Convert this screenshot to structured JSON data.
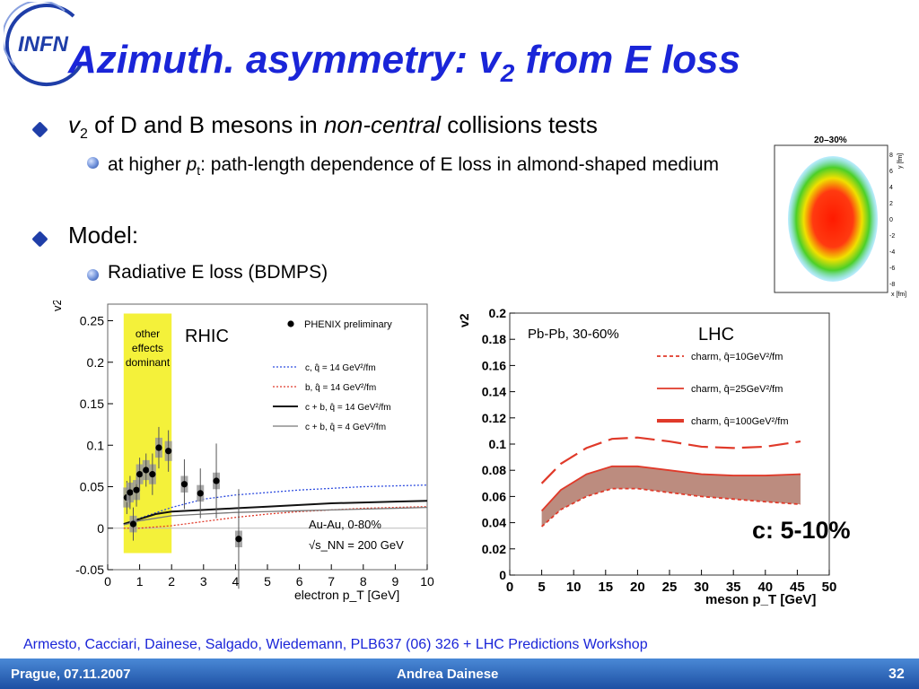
{
  "slide": {
    "logo_text": "INFN",
    "title_main": "Azimuth. asymmetry: v",
    "title_sub": "2",
    "title_end": " from E loss",
    "bullets": {
      "b1_v": "v",
      "b1_sub": "2",
      "b1_pre": " of D and B mesons in ",
      "b1_italic": "non-central",
      "b1_post": " collisions tests",
      "b1a_pre": "at higher ",
      "b1a_p": "p",
      "b1a_t": "t",
      "b1a_post": ": path-length dependence of E loss in almond-shaped medium",
      "b2": "Model:",
      "b2a": "Radiative E loss (BDMPS)"
    },
    "c_note": "c: 5-10%",
    "reference": "Armesto, Cacciari, Dainese, Salgado, Wiedemann, PLB637 (06) 326 + LHC Predictions Workshop",
    "footer": {
      "left": "Prague, 07.11.2007",
      "center": "Andrea Dainese",
      "page": "32"
    }
  },
  "chart_data": [
    {
      "type": "scatter",
      "title": "RHIC",
      "ylabel": "v2",
      "xlabel": "electron p_T [GeV]",
      "xlim": [
        0,
        10
      ],
      "ylim": [
        -0.05,
        0.27
      ],
      "x_ticks": [
        0,
        1,
        2,
        3,
        4,
        5,
        6,
        7,
        8,
        9,
        10
      ],
      "y_ticks": [
        -0.05,
        0,
        0.05,
        0.1,
        0.15,
        0.2,
        0.25
      ],
      "y_tick_labels": [
        "-0.05",
        "0",
        "0.05",
        "0.1",
        "0.15",
        "0.2",
        "0.25"
      ],
      "shaded_band": {
        "x_range": [
          0.5,
          2.0
        ],
        "color": "#f4f13a",
        "label_lines": [
          "other",
          "effects",
          "dominant"
        ]
      },
      "system_label": "Au-Au, 0-80%",
      "energy_label": "√s_NN = 200 GeV",
      "legend": {
        "points": "PHENIX preliminary",
        "lines": [
          {
            "label": "c, q̂ = 14 GeV²/fm",
            "color": "#2f4de0",
            "style": "dotted"
          },
          {
            "label": "b, q̂ = 14 GeV²/fm",
            "color": "#e03a2a",
            "style": "dotted"
          },
          {
            "label": "c + b, q̂ = 14 GeV²/fm",
            "color": "#111111",
            "style": "solid"
          },
          {
            "label": "c + b, q̂ = 4 GeV²/fm",
            "color": "#777777",
            "style": "solid"
          }
        ]
      },
      "points": [
        {
          "x": 0.6,
          "y": 0.037,
          "err": 0.02,
          "sys": 0.012
        },
        {
          "x": 0.7,
          "y": 0.043,
          "err": 0.02,
          "sys": 0.012
        },
        {
          "x": 0.8,
          "y": 0.005,
          "err": 0.02,
          "sys": 0.01
        },
        {
          "x": 0.9,
          "y": 0.046,
          "err": 0.02,
          "sys": 0.012
        },
        {
          "x": 1.0,
          "y": 0.065,
          "err": 0.02,
          "sys": 0.012
        },
        {
          "x": 1.2,
          "y": 0.07,
          "err": 0.02,
          "sys": 0.012
        },
        {
          "x": 1.4,
          "y": 0.065,
          "err": 0.025,
          "sys": 0.012
        },
        {
          "x": 1.6,
          "y": 0.097,
          "err": 0.025,
          "sys": 0.012
        },
        {
          "x": 1.9,
          "y": 0.093,
          "err": 0.025,
          "sys": 0.012
        },
        {
          "x": 2.4,
          "y": 0.053,
          "err": 0.03,
          "sys": 0.01
        },
        {
          "x": 2.9,
          "y": 0.042,
          "err": 0.03,
          "sys": 0.01
        },
        {
          "x": 3.4,
          "y": 0.057,
          "err": 0.045,
          "sys": 0.01
        },
        {
          "x": 4.1,
          "y": -0.013,
          "err": 0.06,
          "sys": 0.01
        }
      ],
      "curves": [
        {
          "name": "c, q̂ = 14 GeV²/fm",
          "x": [
            0.5,
            1,
            2,
            3,
            4,
            5,
            6,
            7,
            8,
            9,
            10
          ],
          "y": [
            0.005,
            0.012,
            0.025,
            0.035,
            0.04,
            0.043,
            0.046,
            0.048,
            0.05,
            0.051,
            0.052
          ]
        },
        {
          "name": "b, q̂ = 14 GeV²/fm",
          "x": [
            0.5,
            1,
            2,
            3,
            4,
            5,
            6,
            7,
            8,
            9,
            10
          ],
          "y": [
            0,
            0,
            0.003,
            0.008,
            0.013,
            0.017,
            0.02,
            0.022,
            0.024,
            0.025,
            0.026
          ]
        },
        {
          "name": "c + b, q̂ = 14 GeV²/fm",
          "x": [
            0.5,
            1,
            1.5,
            2,
            3,
            4,
            5,
            6,
            7,
            8,
            9,
            10
          ],
          "y": [
            0.005,
            0.011,
            0.017,
            0.02,
            0.022,
            0.024,
            0.026,
            0.028,
            0.03,
            0.031,
            0.032,
            0.033
          ]
        },
        {
          "name": "c + b, q̂ = 4 GeV²/fm",
          "x": [
            0.5,
            1,
            2,
            3,
            4,
            5,
            6,
            7,
            8,
            9,
            10
          ],
          "y": [
            0.004,
            0.009,
            0.015,
            0.017,
            0.019,
            0.02,
            0.021,
            0.022,
            0.023,
            0.024,
            0.025
          ]
        }
      ]
    },
    {
      "type": "line",
      "title": "LHC",
      "subtitle": "Pb-Pb, 30-60%",
      "ylabel": "v2",
      "xlabel": "meson p_T [GeV]",
      "xlim": [
        0,
        50
      ],
      "ylim": [
        0,
        0.2
      ],
      "x_ticks": [
        0,
        5,
        10,
        15,
        20,
        25,
        30,
        35,
        40,
        45,
        50
      ],
      "y_ticks": [
        0,
        0.02,
        0.04,
        0.06,
        0.08,
        0.1,
        0.12,
        0.14,
        0.16,
        0.18,
        0.2
      ],
      "y_tick_labels": [
        "0",
        "0.02",
        "0.04",
        "0.06",
        "0.08",
        "0.1",
        "0.12",
        "0.14",
        "0.16",
        "0.18",
        "0.2"
      ],
      "series": [
        {
          "name": "charm, q̂=10GeV²/fm",
          "color": "#e03a2a",
          "style": "dashed-fine",
          "x": [
            5,
            8,
            12,
            16,
            20,
            25,
            30,
            35,
            40,
            45.5
          ],
          "y": [
            0.037,
            0.05,
            0.06,
            0.066,
            0.066,
            0.063,
            0.06,
            0.058,
            0.056,
            0.054
          ]
        },
        {
          "name": "charm, q̂=25GeV²/fm",
          "color": "#e03a2a",
          "style": "solid",
          "x": [
            5,
            8,
            12,
            16,
            20,
            25,
            30,
            35,
            40,
            45.5
          ],
          "y": [
            0.049,
            0.065,
            0.077,
            0.083,
            0.083,
            0.08,
            0.077,
            0.076,
            0.076,
            0.077
          ]
        },
        {
          "name": "charm, q̂=100GeV²/fm",
          "color": "#e03a2a",
          "style": "long-dashed",
          "x": [
            5,
            8,
            12,
            16,
            20,
            25,
            30,
            35,
            40,
            45.5
          ],
          "y": [
            0.07,
            0.085,
            0.097,
            0.104,
            0.105,
            0.102,
            0.098,
            0.097,
            0.098,
            0.102
          ]
        }
      ],
      "band": {
        "between": [
          0,
          1
        ],
        "color": "#b07868"
      },
      "inset": {
        "label": "20–30%",
        "xlabel": "x [fm]",
        "ylabel": "y [fm]",
        "ticks": [
          "8",
          "6",
          "4",
          "2",
          "0",
          "-2",
          "-4",
          "-6",
          "-8"
        ]
      }
    }
  ]
}
